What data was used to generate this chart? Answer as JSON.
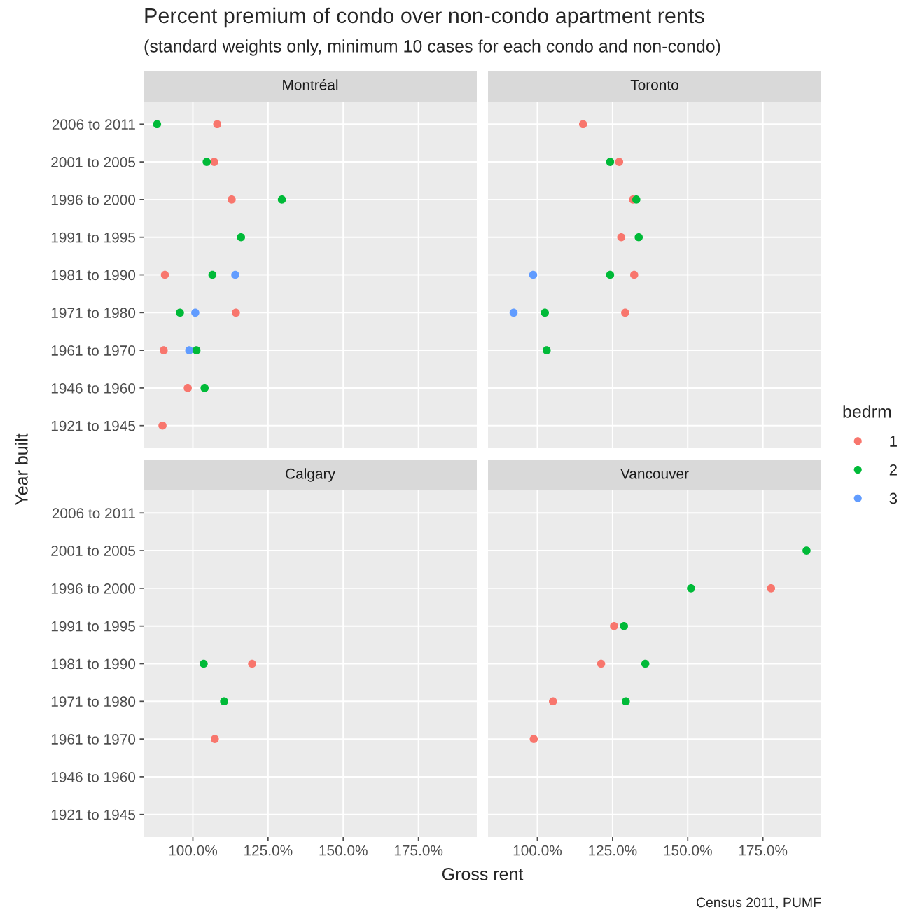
{
  "chart_data": [
    {
      "type": "scatter",
      "title": "Montréal",
      "annotations": [
        "Percent premium of condo over non-condo apartment rents",
        "(standard weights only, minimum 10 cases for each condo and non-condo)"
      ],
      "xlabel": "Gross rent",
      "ylabel": "Year built",
      "orientation": "horizontal",
      "marker": "circle",
      "grid": true,
      "legend": "right",
      "legend_title": "bedrm",
      "tick_labels": "y",
      "categories": [
        "2006 to 2011",
        "2001 to 2005",
        "1996 to 2000",
        "1991 to 1995",
        "1981 to 1990",
        "1971 to 1980",
        "1961 to 1970",
        "1946 to 1960",
        "1921 to 1945"
      ],
      "xlim": [
        83.6,
        194.4
      ],
      "xticks": [
        {
          "value": 100,
          "label": null
        },
        {
          "value": 125,
          "label": null
        },
        {
          "value": 150,
          "label": null
        },
        {
          "value": 175,
          "label": null
        }
      ],
      "series": [
        {
          "name": "1",
          "color": "#f8766d",
          "values": [
            108.1,
            107.1,
            112.9,
            null,
            90.7,
            114.3,
            90.3,
            98.3,
            89.9
          ]
        },
        {
          "name": "2",
          "color": "#00ba38",
          "values": [
            88.1,
            104.6,
            129.6,
            116.0,
            106.5,
            95.7,
            101.2,
            103.9,
            null
          ]
        },
        {
          "name": "3",
          "color": "#619cff",
          "values": [
            null,
            null,
            null,
            null,
            114.1,
            100.8,
            98.8,
            null,
            null
          ]
        }
      ]
    },
    {
      "type": "scatter",
      "title": "Toronto",
      "orientation": "horizontal",
      "marker": "circle",
      "grid": true,
      "tick_labels": false,
      "categories": [
        null,
        null,
        null,
        null,
        null,
        null,
        null,
        null,
        null
      ],
      "xlim": [
        83.6,
        194.4
      ],
      "xticks": [
        {
          "value": 100,
          "label": null
        },
        {
          "value": 125,
          "label": null
        },
        {
          "value": 150,
          "label": null
        },
        {
          "value": 175,
          "label": null
        }
      ],
      "series": [
        {
          "name": "1",
          "color": "#f8766d",
          "values": [
            115.2,
            127.2,
            131.8,
            127.9,
            132.2,
            129.2,
            null,
            null,
            null
          ]
        },
        {
          "name": "2",
          "color": "#00ba38",
          "values": [
            null,
            124.2,
            132.9,
            133.7,
            124.2,
            102.5,
            103.1,
            null,
            null
          ]
        },
        {
          "name": "3",
          "color": "#619cff",
          "values": [
            null,
            null,
            null,
            null,
            98.6,
            92.1,
            null,
            null,
            null
          ]
        }
      ]
    },
    {
      "type": "scatter",
      "title": "Calgary",
      "orientation": "horizontal",
      "marker": "circle",
      "grid": true,
      "categories": [
        "2006 to 2011",
        "2001 to 2005",
        "1996 to 2000",
        "1991 to 1995",
        "1981 to 1990",
        "1971 to 1980",
        "1961 to 1970",
        "1946 to 1960",
        "1921 to 1945"
      ],
      "xlim": [
        83.6,
        194.4
      ],
      "xticks": [
        {
          "value": 100,
          "label": "100.0%"
        },
        {
          "value": 125,
          "label": "125.0%"
        },
        {
          "value": 150,
          "label": "150.0%"
        },
        {
          "value": 175,
          "label": "175.0%"
        }
      ],
      "series": [
        {
          "name": "1",
          "color": "#f8766d",
          "values": [
            null,
            null,
            null,
            null,
            119.7,
            null,
            107.3,
            null,
            null
          ]
        },
        {
          "name": "2",
          "color": "#00ba38",
          "values": [
            null,
            null,
            null,
            null,
            103.6,
            110.4,
            null,
            null,
            null
          ]
        }
      ]
    },
    {
      "type": "scatter",
      "title": "Vancouver",
      "orientation": "horizontal",
      "marker": "circle",
      "grid": true,
      "tick_labels": "x",
      "annotations": [
        "Census 2011, PUMF"
      ],
      "categories": [
        null,
        null,
        null,
        null,
        null,
        null,
        null,
        null,
        null
      ],
      "xlim": [
        83.6,
        194.4
      ],
      "xticks": [
        {
          "value": 100,
          "label": "100.0%"
        },
        {
          "value": 125,
          "label": "125.0%"
        },
        {
          "value": 150,
          "label": "150.0%"
        },
        {
          "value": 175,
          "label": "175.0%"
        }
      ],
      "series": [
        {
          "name": "1",
          "color": "#f8766d",
          "values": [
            null,
            null,
            177.7,
            125.5,
            121.2,
            105.2,
            98.8,
            null,
            null
          ]
        },
        {
          "name": "2",
          "color": "#00ba38",
          "values": [
            null,
            189.5,
            151.1,
            128.8,
            135.9,
            129.4,
            null,
            null,
            null
          ]
        }
      ]
    }
  ]
}
